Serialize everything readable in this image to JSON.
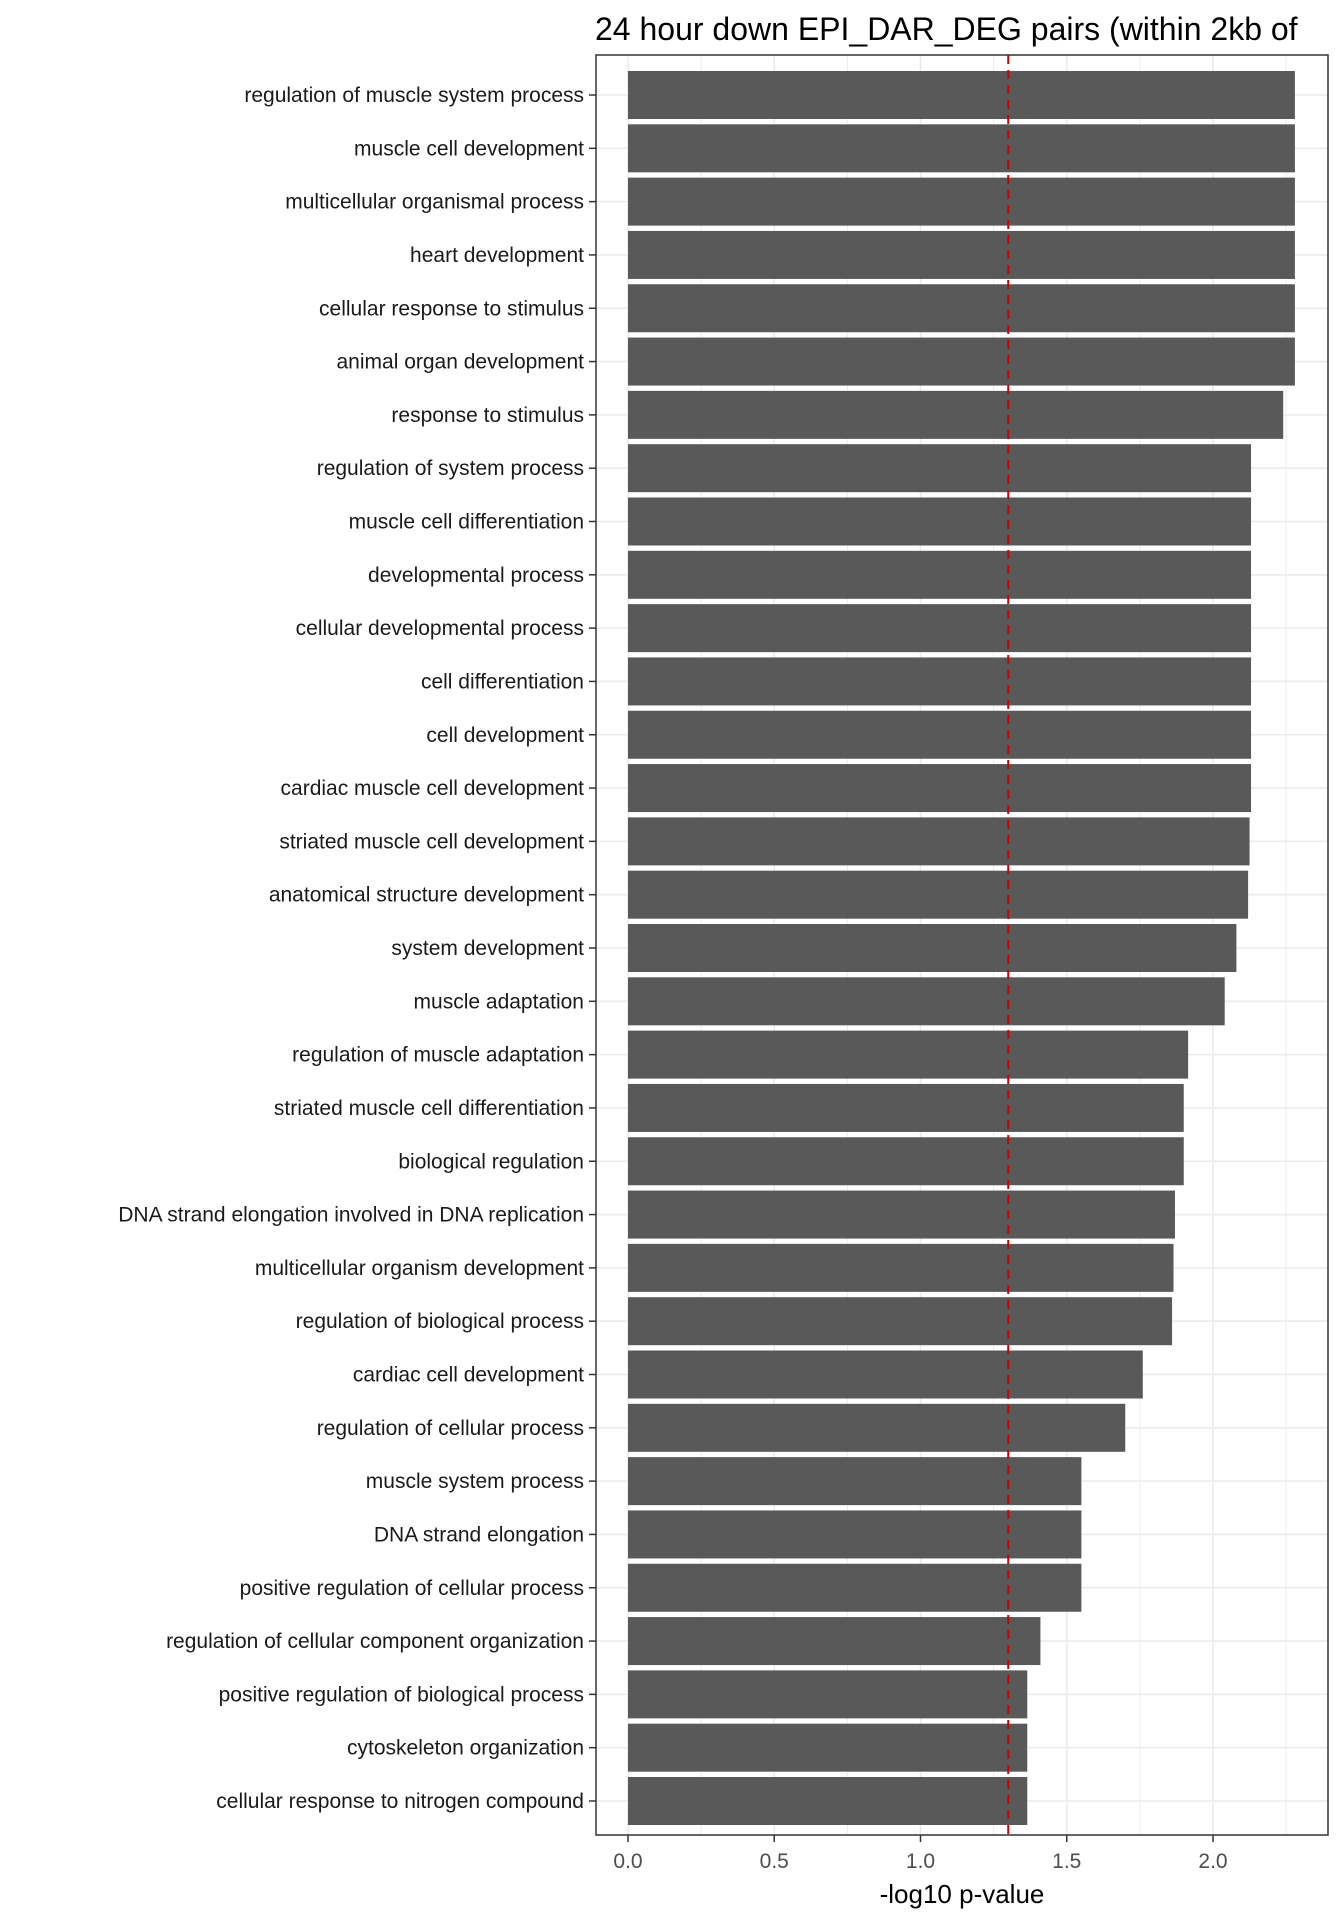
{
  "chart_data": {
    "type": "bar",
    "orientation": "horizontal",
    "title": "24 hour down EPI_DAR_DEG pairs (within 2kb of",
    "xlabel": "-log10 p-value",
    "ylabel": "",
    "xlim": [
      -0.11,
      2.42
    ],
    "xticks": [
      0.0,
      0.5,
      1.0,
      1.5,
      2.0
    ],
    "xtick_labels": [
      "0.0",
      "0.5",
      "1.0",
      "1.5",
      "2.0"
    ],
    "grid": true,
    "threshold": 1.3,
    "categories": [
      "regulation of muscle system process",
      "muscle cell development",
      "multicellular organismal process",
      "heart development",
      "cellular response to stimulus",
      "animal organ development",
      "response to stimulus",
      "regulation of system process",
      "muscle cell differentiation",
      "developmental process",
      "cellular developmental process",
      "cell differentiation",
      "cell development",
      "cardiac muscle cell development",
      "striated muscle cell development",
      "anatomical structure development",
      "system development",
      "muscle adaptation",
      "regulation of muscle adaptation",
      "striated muscle cell differentiation",
      "biological regulation",
      "DNA strand elongation involved in DNA replication",
      "multicellular organism development",
      "regulation of biological process",
      "cardiac cell development",
      "regulation of cellular process",
      "muscle system process",
      "DNA strand elongation",
      "positive regulation of cellular process",
      "regulation of cellular component organization",
      "positive regulation of biological process",
      "cytoskeleton organization",
      "cellular response to nitrogen compound"
    ],
    "values": [
      2.28,
      2.28,
      2.28,
      2.28,
      2.28,
      2.28,
      2.24,
      2.13,
      2.13,
      2.13,
      2.13,
      2.13,
      2.13,
      2.13,
      2.125,
      2.12,
      2.08,
      2.04,
      1.915,
      1.9,
      1.9,
      1.87,
      1.865,
      1.86,
      1.76,
      1.7,
      1.55,
      1.55,
      1.55,
      1.41,
      1.365,
      1.365,
      1.365
    ],
    "colors": {
      "bar": "#595959",
      "threshold_line": "#cc0000",
      "grid": "#ebebeb",
      "panel_border": "#333333",
      "tick": "#333333"
    }
  }
}
